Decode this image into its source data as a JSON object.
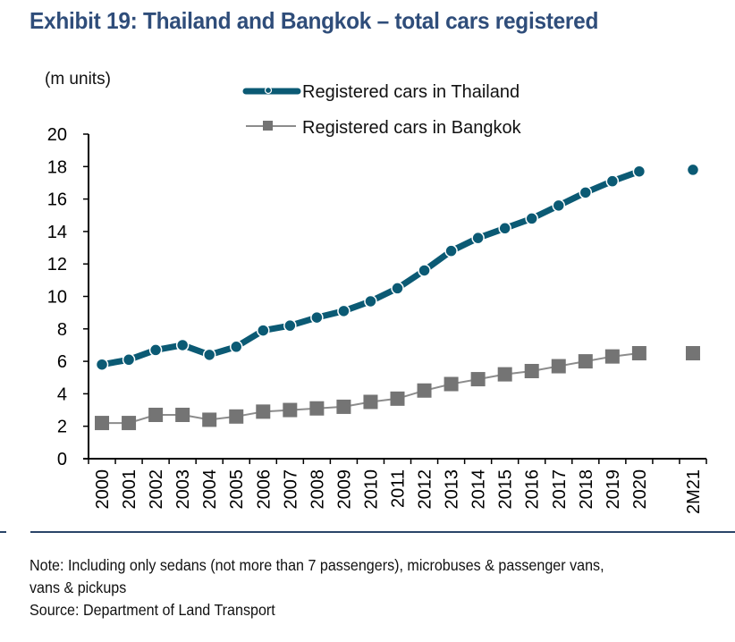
{
  "title": "Exhibit 19:  Thailand and Bangkok – total cars registered",
  "note_lines": [
    "Note: Including only sedans (not more than 7 passengers), microbuses & passenger vans,",
    "vans & pickups",
    "Source: Department of Land Transport"
  ],
  "colors": {
    "title": "#2f4d7a",
    "thailand": "#0b5a74",
    "bangkok_marker": "#747474",
    "bangkok_line": "#8c8c8c",
    "separator": "#2a4468"
  },
  "chart_data": {
    "type": "line",
    "title": "Exhibit 19:  Thailand and Bangkok – total cars registered",
    "ylabel": "(m units)",
    "xlabel": "",
    "ylim": [
      0,
      20
    ],
    "yticks": [
      0,
      2,
      4,
      6,
      8,
      10,
      12,
      14,
      16,
      18,
      20
    ],
    "grid": false,
    "legend_position": "top-center",
    "categories": [
      "2000",
      "2001",
      "2002",
      "2003",
      "2004",
      "2005",
      "2006",
      "2007",
      "2008",
      "2009",
      "2010",
      "2011",
      "2012",
      "2013",
      "2014",
      "2015",
      "2016",
      "2017",
      "2018",
      "2019",
      "2020",
      "2M21"
    ],
    "gap_before_last": true,
    "series": [
      {
        "name": "Registered cars in Thailand",
        "marker": "circle",
        "line_style": "thick-dashed",
        "values": [
          5.8,
          6.1,
          6.7,
          7.0,
          6.4,
          6.9,
          7.9,
          8.2,
          8.7,
          9.1,
          9.7,
          10.5,
          11.6,
          12.8,
          13.6,
          14.2,
          14.8,
          15.6,
          16.4,
          17.1,
          17.7,
          17.8
        ]
      },
      {
        "name": "Registered cars in Bangkok",
        "marker": "square",
        "line_style": "thin-solid",
        "values": [
          2.2,
          2.2,
          2.7,
          2.7,
          2.4,
          2.6,
          2.9,
          3.0,
          3.1,
          3.2,
          3.5,
          3.7,
          4.2,
          4.6,
          4.9,
          5.2,
          5.4,
          5.7,
          6.0,
          6.3,
          6.5,
          6.5
        ]
      }
    ]
  }
}
